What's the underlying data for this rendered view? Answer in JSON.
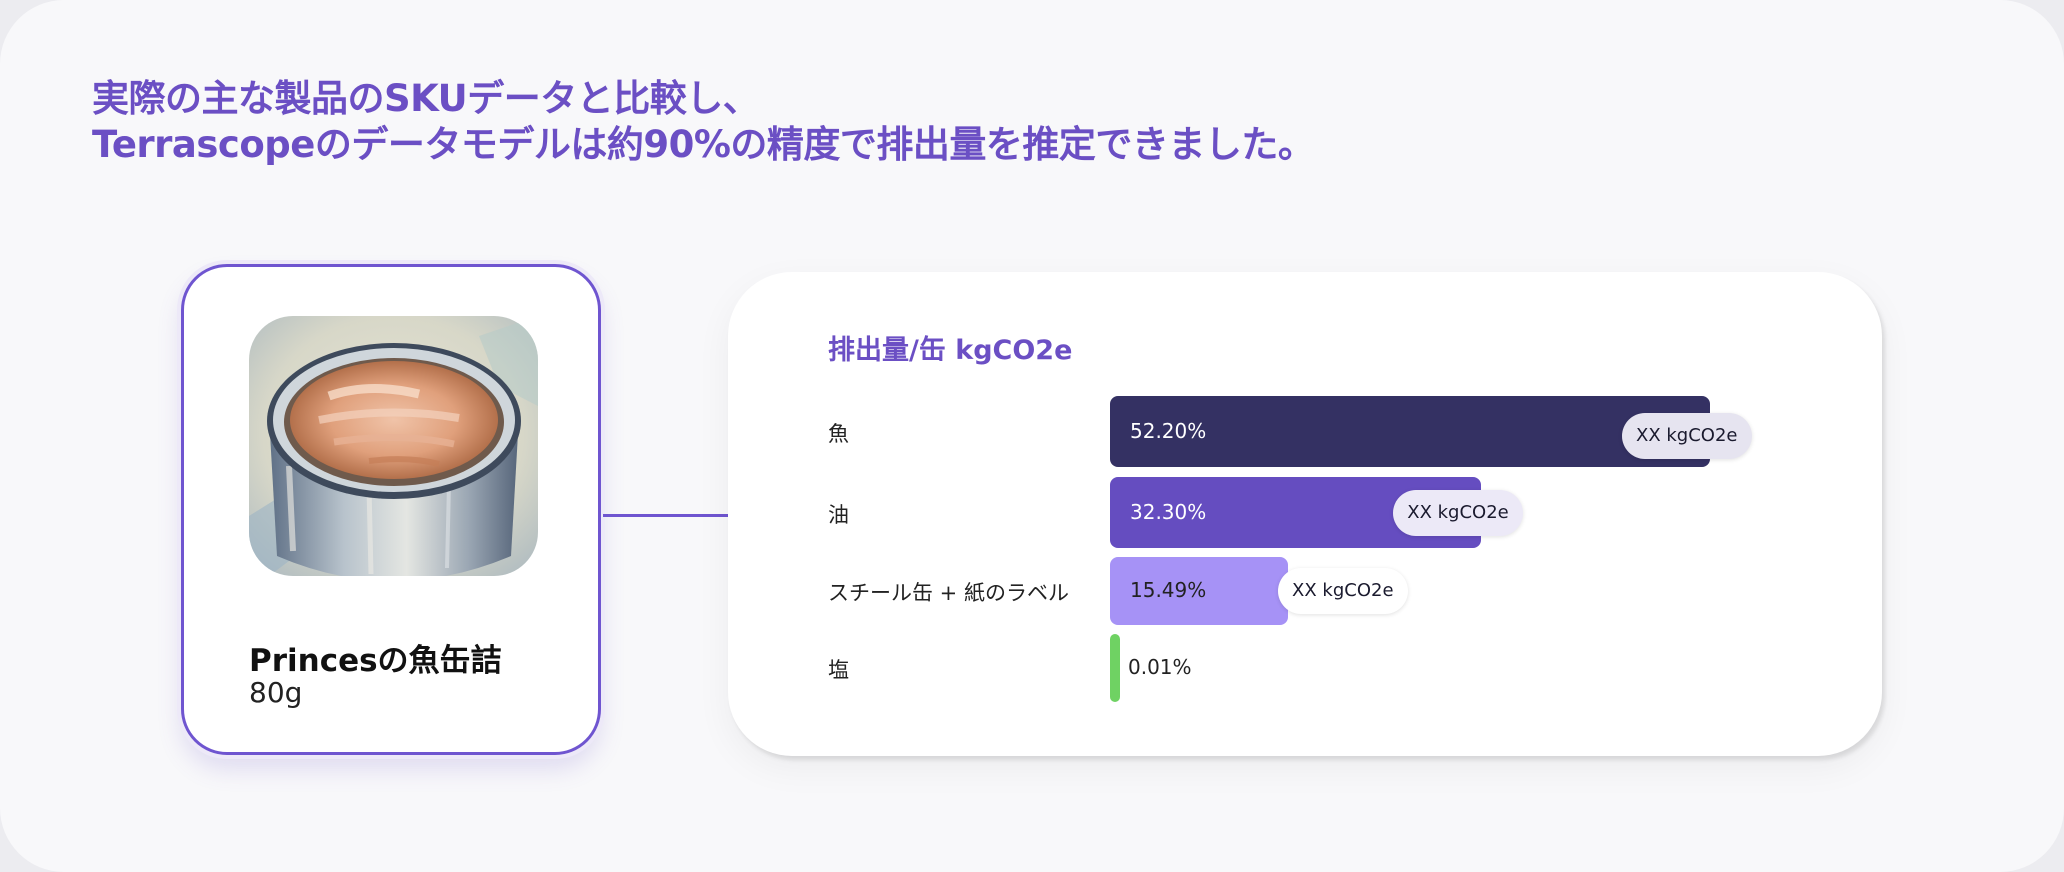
{
  "headline": {
    "line1": "実際の主な製品のSKUデータと比較し、",
    "line2": "Terrascopeのデータモデルは約90%の精度で排出量を推定できました。"
  },
  "product": {
    "name": "Princesの魚缶詰",
    "weight": "80g"
  },
  "chart_data": {
    "type": "bar",
    "orientation": "horizontal",
    "title": "排出量/缶 kgCO2e",
    "categories": [
      "魚",
      "油",
      "スチール缶 + 紙のラベル",
      "塩"
    ],
    "values": [
      52.2,
      32.3,
      15.49,
      0.01
    ],
    "value_labels": [
      "52.20%",
      "32.30%",
      "15.49%",
      "0.01%"
    ],
    "annotations": [
      "XX  kgCO2e",
      "XX  kgCO2e",
      "XX kgCO2e",
      ""
    ],
    "bar_colors": [
      "#343163",
      "#654dc0",
      "#a692f6",
      "#6fd263"
    ],
    "pct_label_colors": [
      "#ffffff",
      "#ffffff",
      "#222222",
      "#222222"
    ],
    "pill_colors": [
      "#e6e4f0",
      "#ece9f7",
      "#ffffff",
      "#ffffff"
    ],
    "xlim": [
      0,
      52.2
    ],
    "grid": false
  }
}
